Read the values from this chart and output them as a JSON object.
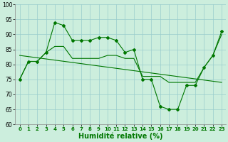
{
  "x": [
    0,
    1,
    2,
    3,
    4,
    5,
    6,
    7,
    8,
    9,
    10,
    11,
    12,
    13,
    14,
    15,
    16,
    17,
    18,
    19,
    20,
    21,
    22,
    23
  ],
  "line_jagged": [
    75,
    81,
    81,
    84,
    94,
    93,
    88,
    88,
    88,
    89,
    89,
    88,
    84,
    85,
    75,
    75,
    66,
    65,
    65,
    73,
    73,
    79,
    83,
    91
  ],
  "line_smooth": [
    75,
    81,
    81,
    84,
    86,
    86,
    82,
    82,
    82,
    82,
    83,
    83,
    82,
    82,
    76,
    76,
    76,
    74,
    74,
    74,
    74,
    79,
    83,
    90
  ],
  "trend_x": [
    0,
    23
  ],
  "trend_y": [
    83,
    74
  ],
  "line_color": "#007700",
  "bg_color": "#cceedd",
  "grid_color": "#99cccc",
  "xlabel": "Humidité relative (%)",
  "ylim": [
    60,
    100
  ],
  "yticks": [
    60,
    65,
    70,
    75,
    80,
    85,
    90,
    95,
    100
  ],
  "xticks": [
    0,
    1,
    2,
    3,
    4,
    5,
    6,
    7,
    8,
    9,
    10,
    11,
    12,
    13,
    14,
    15,
    16,
    17,
    18,
    19,
    20,
    21,
    22,
    23
  ],
  "xlabel_fontsize": 7,
  "tick_fontsize": 5.5
}
